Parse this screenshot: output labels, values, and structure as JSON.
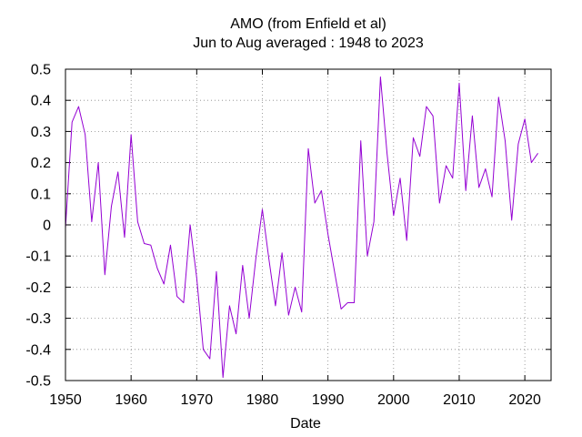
{
  "chart_data": {
    "type": "line",
    "title": [
      "AMO (from Enfield et al)",
      "Jun to Aug averaged : 1948 to 2023"
    ],
    "xlabel": "Date",
    "ylabel": "",
    "xlim": [
      1950,
      2024
    ],
    "ylim": [
      -0.5,
      0.5
    ],
    "xticks": [
      1950,
      1960,
      1970,
      1980,
      1990,
      2000,
      2010,
      2020
    ],
    "yticks": [
      -0.5,
      -0.4,
      -0.3,
      -0.2,
      -0.1,
      0,
      0.1,
      0.2,
      0.3,
      0.4,
      0.5
    ],
    "ytick_labels": [
      "-0.5",
      "-0.4",
      "-0.3",
      "-0.2",
      "-0.1",
      "0",
      "0.1",
      "0.2",
      "0.3",
      "0.4",
      "0.5"
    ],
    "xtick_labels": [
      "1950",
      "1960",
      "1970",
      "1980",
      "1990",
      "2000",
      "2010",
      "2020"
    ],
    "grid": true,
    "line_color": "#9400d3",
    "series": [
      {
        "name": "AMO",
        "x": [
          1950,
          1951,
          1952,
          1953,
          1954,
          1955,
          1956,
          1957,
          1958,
          1959,
          1960,
          1961,
          1962,
          1963,
          1964,
          1965,
          1966,
          1967,
          1968,
          1969,
          1970,
          1971,
          1972,
          1973,
          1974,
          1975,
          1976,
          1977,
          1978,
          1979,
          1980,
          1981,
          1982,
          1983,
          1984,
          1985,
          1986,
          1987,
          1988,
          1989,
          1990,
          1991,
          1992,
          1993,
          1994,
          1995,
          1996,
          1997,
          1998,
          1999,
          2000,
          2001,
          2002,
          2003,
          2004,
          2005,
          2006,
          2007,
          2008,
          2009,
          2010,
          2011,
          2012,
          2013,
          2014,
          2015,
          2016,
          2017,
          2018,
          2019,
          2020,
          2021,
          2022
        ],
        "values": [
          -0.01,
          0.33,
          0.38,
          0.29,
          0.01,
          0.2,
          -0.16,
          0.06,
          0.17,
          -0.04,
          0.29,
          0.01,
          -0.06,
          -0.065,
          -0.14,
          -0.19,
          -0.065,
          -0.23,
          -0.25,
          0.0,
          -0.17,
          -0.4,
          -0.43,
          -0.15,
          -0.49,
          -0.26,
          -0.35,
          -0.13,
          -0.3,
          -0.11,
          0.05,
          -0.11,
          -0.26,
          -0.09,
          -0.29,
          -0.2,
          -0.28,
          0.245,
          0.07,
          0.11,
          -0.03,
          -0.15,
          -0.27,
          -0.25,
          -0.25,
          0.27,
          -0.1,
          0.01,
          0.475,
          0.23,
          0.03,
          0.15,
          -0.05,
          0.28,
          0.22,
          0.38,
          0.35,
          0.07,
          0.19,
          0.15,
          0.455,
          0.11,
          0.35,
          0.12,
          0.18,
          0.09,
          0.41,
          0.27,
          0.015,
          0.26,
          0.34,
          0.2,
          0.23
        ]
      }
    ]
  }
}
